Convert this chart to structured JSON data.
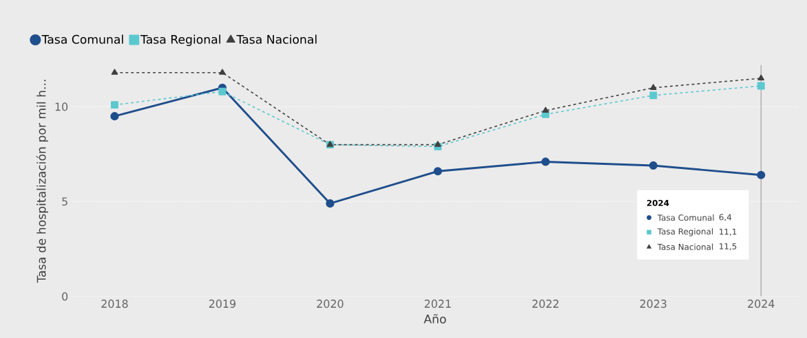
{
  "chart_data": {
    "type": "line",
    "xlabel": "Año",
    "ylabel": "Tasa de hospitalización por mil h...",
    "x": [
      2018,
      2019,
      2020,
      2021,
      2022,
      2023,
      2024
    ],
    "xlim": [
      2017.6,
      2024.35
    ],
    "xticks": [
      2018,
      2019,
      2020,
      2021,
      2022,
      2023,
      2024
    ],
    "ylim": [
      0,
      12.2
    ],
    "yticks": [
      0,
      5,
      10
    ],
    "grid": "y",
    "legend": "top left",
    "series": [
      {
        "name": "Tasa Comunal",
        "color": "#1f4e8c",
        "marker": "circle",
        "line_style": "solid",
        "values": [
          9.5,
          11.0,
          4.9,
          6.6,
          7.1,
          6.9,
          6.4
        ]
      },
      {
        "name": "Tasa Regional",
        "color": "#5bc8d0",
        "marker": "square",
        "line_style": "dashed",
        "values": [
          10.1,
          10.8,
          8.0,
          7.9,
          9.6,
          10.6,
          11.1
        ]
      },
      {
        "name": "Tasa Nacional",
        "color": "#404040",
        "marker": "triangle",
        "line_style": "dashed",
        "values": [
          11.8,
          11.8,
          8.0,
          8.0,
          9.8,
          11.0,
          11.5
        ]
      }
    ],
    "ref_lines": [
      {
        "axis": "x",
        "value": 2024,
        "color": "#404040"
      }
    ],
    "annotations": [
      "2024",
      "6,4",
      "11,1",
      "11,5"
    ]
  }
}
